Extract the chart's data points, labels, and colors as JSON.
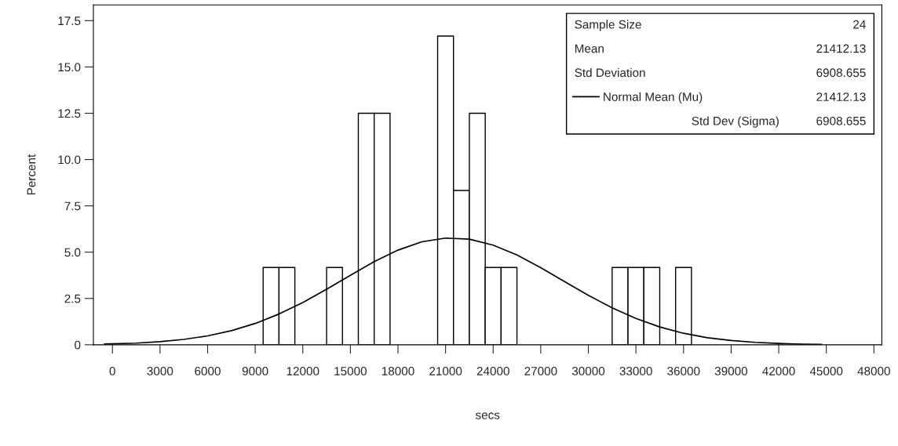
{
  "chart_data": {
    "type": "histogram",
    "xlabel": "secs",
    "ylabel": "Percent",
    "bins": [
      9500,
      10500,
      11500,
      12500,
      13500,
      14500,
      15500,
      16500,
      17500,
      18500,
      19500,
      20500,
      21500,
      22500,
      23500,
      24500,
      25500,
      26500,
      27500,
      28500,
      29500,
      30500,
      31500,
      32500,
      33500,
      34500,
      35500,
      36500
    ],
    "values": [
      4.17,
      4.17,
      0,
      0,
      4.17,
      0,
      12.5,
      12.5,
      0,
      0,
      0,
      16.67,
      8.33,
      12.5,
      4.17,
      4.17,
      0,
      0,
      0,
      0,
      0,
      0,
      4.17,
      4.17,
      4.17,
      0,
      4.17
    ],
    "color": "#ffffff",
    "series": [
      {
        "name": "Normal Mean (Mu)",
        "type": "line",
        "color": "#000000",
        "x": [
          -500,
          1500,
          3000,
          4500,
          6000,
          7500,
          9000,
          10500,
          12000,
          13500,
          15000,
          16500,
          18000,
          19500,
          21000,
          22500,
          24000,
          25500,
          27000,
          28500,
          30000,
          31500,
          33000,
          34500,
          36000,
          37500,
          39000,
          40500,
          42000,
          43500,
          44700
        ],
        "values": [
          0.04,
          0.09,
          0.17,
          0.29,
          0.48,
          0.76,
          1.15,
          1.66,
          2.28,
          3.0,
          3.75,
          4.49,
          5.11,
          5.56,
          5.76,
          5.7,
          5.38,
          4.85,
          4.16,
          3.41,
          2.67,
          1.99,
          1.42,
          0.96,
          0.62,
          0.38,
          0.23,
          0.13,
          0.07,
          0.03,
          0.02
        ]
      }
    ],
    "annotations": [
      "Sample Size",
      "24",
      "Mean",
      "21412.13",
      "Std Deviation",
      "6908.655",
      "21412.13",
      "Std Dev (Sigma)",
      "6908.655"
    ],
    "xlim": [
      -1200,
      48500
    ],
    "xticks": [
      0,
      3000,
      6000,
      9000,
      12000,
      15000,
      18000,
      21000,
      24000,
      27000,
      30000,
      33000,
      36000,
      39000,
      42000,
      45000,
      48000
    ],
    "ylim": [
      0,
      18.35
    ],
    "yticks": [
      {
        "value": 0,
        "label": "0"
      },
      2.5,
      {
        "value": 5,
        "label": "5.0"
      },
      7.5,
      {
        "value": 10,
        "label": "10.0"
      },
      12.5,
      {
        "value": 15,
        "label": "15.0"
      },
      17.5
    ],
    "legend": "top right",
    "grid": false
  }
}
